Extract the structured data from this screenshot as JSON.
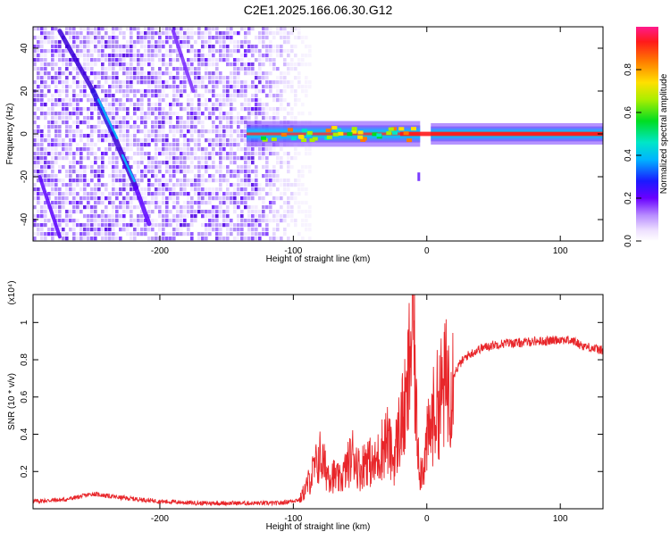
{
  "title": "C2E1.2025.166.06.30.G12",
  "chart_data": [
    {
      "type": "heatmap",
      "xlabel": "Height of straight line (km)",
      "ylabel": "Frequency (Hz)",
      "xlim": [
        -295,
        132
      ],
      "ylim": [
        -50,
        50
      ],
      "xticks": [
        -200,
        -100,
        0,
        100
      ],
      "yticks": [
        -40,
        -20,
        0,
        20,
        40
      ],
      "colorbar": {
        "label": "Normalized spectral amplitude",
        "range": [
          0,
          1
        ],
        "ticks": [
          0.0,
          0.2,
          0.4,
          0.6,
          0.8
        ]
      }
    },
    {
      "type": "line",
      "xlabel": "Height of straight line (km)",
      "ylabel": "SNR (10 * v/v)",
      "scale_note": "(x10⁴)",
      "xlim": [
        -295,
        132
      ],
      "ylim": [
        0,
        1.15
      ],
      "xticks": [
        -200,
        -100,
        0,
        100
      ],
      "yticks": [
        0.2,
        0.4,
        0.6,
        0.8,
        1
      ],
      "series": [
        {
          "color": "#e8262a",
          "x": [
            -295,
            -270,
            -250,
            -230,
            -200,
            -170,
            -140,
            -110,
            -95,
            -90,
            -85,
            -80,
            -75,
            -70,
            -65,
            -60,
            -55,
            -50,
            -45,
            -40,
            -35,
            -30,
            -25,
            -20,
            -15,
            -12,
            -10,
            -8,
            -5,
            -2,
            0,
            5,
            10,
            15,
            20,
            25,
            30,
            40,
            50,
            60,
            70,
            80,
            90,
            100,
            110,
            115,
            120,
            125,
            132
          ],
          "y": [
            0.04,
            0.05,
            0.08,
            0.06,
            0.04,
            0.03,
            0.03,
            0.03,
            0.05,
            0.12,
            0.2,
            0.28,
            0.2,
            0.18,
            0.15,
            0.22,
            0.3,
            0.2,
            0.28,
            0.22,
            0.3,
            0.38,
            0.25,
            0.45,
            0.55,
            0.9,
            1.05,
            0.5,
            0.2,
            0.25,
            0.35,
            0.5,
            0.6,
            0.68,
            0.72,
            0.78,
            0.82,
            0.86,
            0.88,
            0.89,
            0.89,
            0.9,
            0.9,
            0.91,
            0.9,
            0.88,
            0.87,
            0.86,
            0.85
          ]
        }
      ]
    }
  ]
}
